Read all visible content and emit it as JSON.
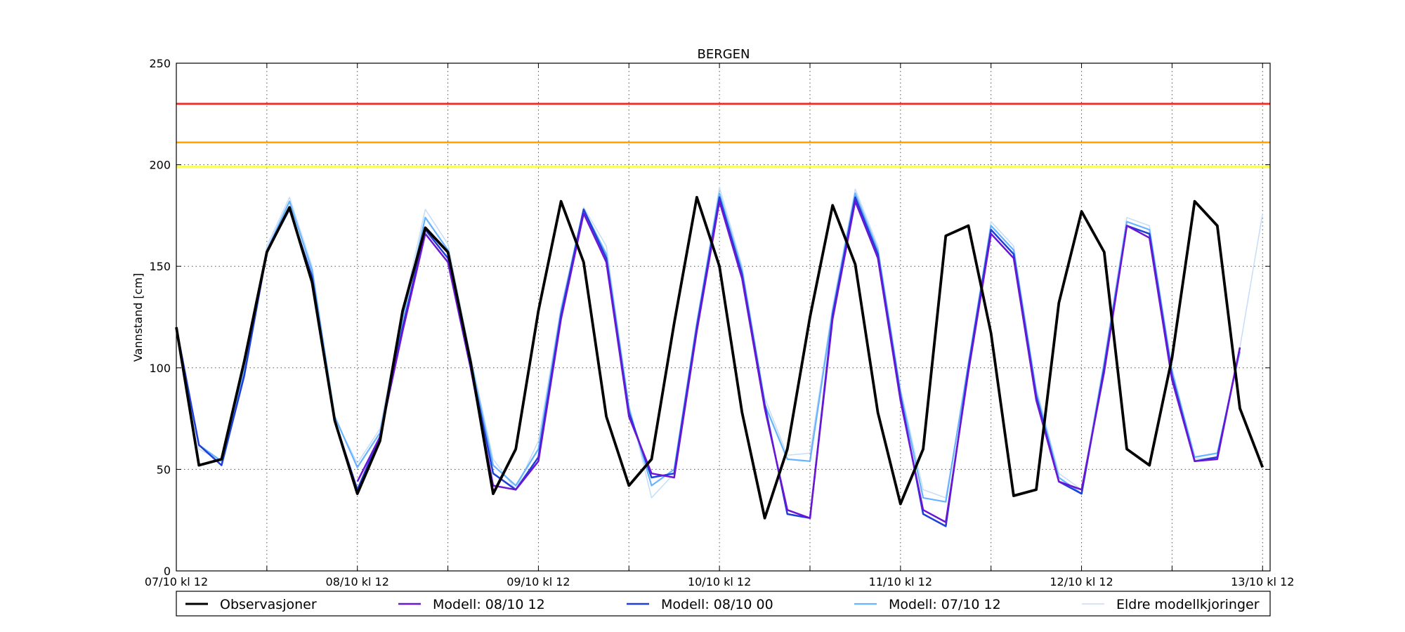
{
  "chart_data": {
    "type": "line",
    "title": "BERGEN",
    "xlabel": "",
    "ylabel": "Vannstand [cm]",
    "ylim": [
      0,
      250
    ],
    "yticks": [
      0,
      50,
      100,
      150,
      200,
      250
    ],
    "xlim": [
      0,
      145
    ],
    "x_unit": "hours since 07/10 kl 12",
    "xticks": [
      {
        "x": 0,
        "label": "07/10 kl 12"
      },
      {
        "x": 24,
        "label": "08/10 kl 12"
      },
      {
        "x": 48,
        "label": "09/10 kl 12"
      },
      {
        "x": 72,
        "label": "10/10 kl 12"
      },
      {
        "x": 96,
        "label": "11/10 kl 12"
      },
      {
        "x": 120,
        "label": "12/10 kl 12"
      },
      {
        "x": 144,
        "label": "13/10 kl 12"
      }
    ],
    "grid": true,
    "thresholds": [
      {
        "value": 230,
        "color": "#ff2020"
      },
      {
        "value": 211,
        "color": "#ffa500"
      },
      {
        "value": 199,
        "color": "#ffff33"
      }
    ],
    "legend": {
      "position": "bottom"
    },
    "series": [
      {
        "name": "Eldre modellkjoringer",
        "color": "#c6dcf7",
        "width": 1.5,
        "x": [
          0,
          3,
          6,
          9,
          12,
          15,
          18,
          21,
          24,
          27,
          30,
          33,
          36,
          39,
          42,
          45,
          48,
          51,
          54,
          57,
          60,
          63,
          66,
          69,
          72,
          75,
          78,
          81,
          84,
          87,
          90,
          93,
          96,
          99,
          102,
          105,
          108,
          111,
          114,
          117,
          120,
          123,
          126,
          129,
          132,
          135,
          138,
          141,
          144
        ],
        "values": [
          120,
          60,
          54,
          100,
          160,
          184,
          150,
          75,
          53,
          70,
          128,
          178,
          161,
          106,
          55,
          40,
          64,
          130,
          179,
          160,
          82,
          36,
          48,
          122,
          189,
          150,
          85,
          57,
          58,
          130,
          188,
          160,
          90,
          40,
          36,
          100,
          172,
          160,
          90,
          48,
          40,
          104,
          174,
          170,
          100,
          55,
          56,
          110,
          176
        ]
      },
      {
        "name": "Modell: 07/10 12",
        "color": "#66b3ff",
        "width": 2.2,
        "x": [
          0,
          3,
          6,
          9,
          12,
          15,
          18,
          21,
          24,
          27,
          30,
          33,
          36,
          39,
          42,
          45,
          48,
          51,
          54,
          57,
          60,
          63,
          66,
          69,
          72,
          75,
          78,
          81,
          84,
          87,
          90,
          93,
          96,
          99,
          102,
          105,
          108,
          111,
          114,
          117,
          120,
          123,
          126,
          129,
          132,
          135,
          138,
          141
        ],
        "values": [
          120,
          62,
          54,
          98,
          158,
          182,
          148,
          76,
          51,
          68,
          124,
          174,
          158,
          104,
          52,
          42,
          60,
          128,
          178,
          156,
          80,
          42,
          50,
          122,
          186,
          148,
          82,
          55,
          54,
          128,
          186,
          158,
          88,
          36,
          34,
          102,
          170,
          158,
          88,
          46,
          38,
          102,
          172,
          168,
          98,
          56,
          58,
          108
        ]
      },
      {
        "name": "Modell: 08/10 00",
        "color": "#1f3fd8",
        "width": 2.5,
        "x": [
          0,
          3,
          6,
          9,
          12,
          15,
          18,
          21,
          24,
          27,
          30,
          33,
          36,
          39,
          42,
          45,
          48,
          51,
          54,
          57,
          60,
          63,
          66,
          69,
          72,
          75,
          78,
          81,
          84,
          87,
          90,
          93,
          96,
          99,
          102,
          105,
          108,
          111,
          114,
          117,
          120,
          123,
          126,
          129,
          132,
          135,
          138,
          141
        ],
        "values": [
          120,
          62,
          52,
          96,
          157,
          178,
          145,
          74,
          40,
          66,
          120,
          168,
          154,
          102,
          48,
          40,
          56,
          126,
          178,
          154,
          78,
          46,
          48,
          120,
          184,
          146,
          82,
          28,
          26,
          126,
          184,
          156,
          86,
          28,
          22,
          100,
          168,
          156,
          86,
          44,
          38,
          100,
          170,
          166,
          96,
          54,
          56,
          110
        ]
      },
      {
        "name": "Modell: 08/10 12",
        "color": "#6a16d4",
        "width": 2.5,
        "x": [
          24,
          27,
          30,
          33,
          36,
          39,
          42,
          45,
          48,
          51,
          54,
          57,
          60,
          63,
          66,
          69,
          72,
          75,
          78,
          81,
          84,
          87,
          90,
          93,
          96,
          99,
          102,
          105,
          108,
          111,
          114,
          117,
          120,
          123,
          126,
          129,
          132,
          135,
          138,
          141
        ],
        "values": [
          44,
          66,
          118,
          166,
          152,
          100,
          42,
          40,
          54,
          124,
          176,
          152,
          76,
          48,
          46,
          118,
          182,
          144,
          80,
          30,
          26,
          124,
          182,
          154,
          84,
          30,
          24,
          98,
          166,
          154,
          84,
          44,
          40,
          98,
          170,
          164,
          94,
          54,
          55,
          110
        ]
      },
      {
        "name": "Observasjoner",
        "color": "#000000",
        "width": 3.8,
        "x": [
          0,
          3,
          6,
          9,
          12,
          15,
          18,
          21,
          24,
          27,
          30,
          33,
          36,
          39,
          42,
          45,
          48,
          51,
          54,
          57,
          60,
          63,
          66,
          69,
          72,
          75,
          78,
          81,
          84,
          87,
          90,
          93,
          96,
          99,
          102,
          105,
          108,
          111,
          114,
          117,
          120,
          123,
          126,
          129,
          132,
          135,
          138,
          141,
          144
        ],
        "values": [
          120,
          52,
          55,
          103,
          157,
          179,
          142,
          74,
          38,
          64,
          128,
          169,
          157,
          103,
          38,
          60,
          128,
          182,
          152,
          76,
          42,
          55,
          122,
          184,
          150,
          78,
          26,
          60,
          125,
          180,
          151,
          78,
          33,
          60,
          165,
          170,
          117,
          37,
          40,
          132,
          177,
          157,
          60,
          52,
          105,
          182,
          170,
          80,
          51
        ]
      }
    ]
  }
}
